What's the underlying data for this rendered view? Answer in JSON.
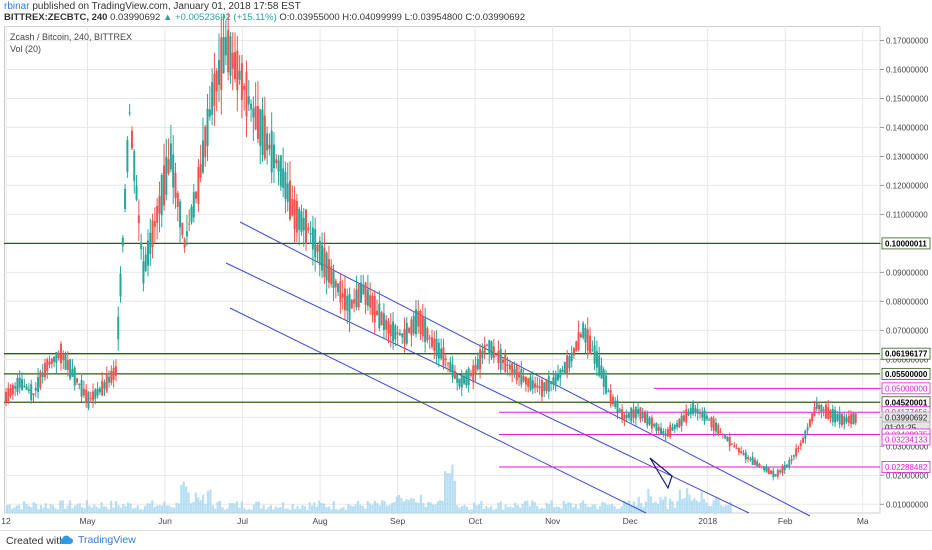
{
  "header": {
    "author": "rbinar",
    "published_text": " published on TradingView.com, January 01, 2018 17:58 EST",
    "symbol": "BITTREX:ZECBTC, 240",
    "change": "▲ +0.00523692 (+15.11%)",
    "price": "0.03990692",
    "ohlc": "O:0.03955000 H:0.04099999 L:0.03954800 C:0.03990692"
  },
  "legend": {
    "pair": "Zcash / Bitcoin, 240, BITTREX",
    "volume": "Vol (20)"
  },
  "footer": {
    "created_with": "Created with",
    "brand": "TradingView",
    "brand_icon": "tradingview-cloud-icon"
  },
  "colors": {
    "up": "#26a69a",
    "down": "#ef5350",
    "support": "#2e5d12",
    "pink": "#e31ad6",
    "channel": "#3e47c9",
    "volume": "#9fd3ef",
    "grid": "#e8e8e8"
  },
  "chart_data": {
    "type": "line",
    "title": "Zcash / Bitcoin, 240, BITTREX",
    "xlabel": "",
    "ylabel": "",
    "x_ticks": [
      "12",
      "May",
      "Jun",
      "Jul",
      "Aug",
      "Sep",
      "Oct",
      "Nov",
      "Dec",
      "2018",
      "Feb",
      "Ma"
    ],
    "y_ticks": [
      "0.17000000",
      "0.16000000",
      "0.15000000",
      "0.14000000",
      "0.13000000",
      "0.12000000",
      "0.11000000",
      "0.10000000",
      "0.09000000",
      "0.08000000",
      "0.07000000",
      "0.06000000",
      "0.05000000",
      "0.04000000",
      "0.03000000",
      "0.02000000",
      "0.01000000"
    ],
    "ylim": [
      0.007,
      0.175
    ],
    "series": [
      {
        "values": [
          0.047,
          0.052,
          0.048,
          0.058,
          0.062,
          0.054,
          0.046,
          0.05,
          0.056,
          0.145,
          0.09,
          0.11,
          0.13,
          0.1,
          0.12,
          0.15,
          0.168,
          0.158,
          0.145,
          0.135,
          0.125,
          0.11,
          0.105,
          0.095,
          0.086,
          0.078,
          0.084,
          0.076,
          0.07,
          0.068,
          0.074,
          0.066,
          0.06,
          0.052,
          0.055,
          0.065,
          0.06,
          0.056,
          0.052,
          0.05,
          0.053,
          0.059,
          0.07,
          0.06,
          0.047,
          0.04,
          0.042,
          0.038,
          0.034,
          0.038,
          0.043,
          0.04,
          0.035,
          0.03,
          0.026,
          0.023,
          0.02,
          0.024,
          0.032,
          0.044,
          0.041,
          0.039,
          0.0399
        ]
      }
    ],
    "volume": {
      "name": "Vol (20)",
      "spikes_at": [
        "Jun",
        "Oct"
      ]
    },
    "price_labels": [
      {
        "value": 0.10000011,
        "text": "0.10000011",
        "style": "green"
      },
      {
        "value": 0.06196177,
        "text": "0.06196177",
        "style": "green"
      },
      {
        "value": 0.055,
        "text": "0.05500000",
        "style": "green"
      },
      {
        "value": 0.05,
        "text": "0.05000000",
        "style": "pink"
      },
      {
        "value": 0.04520001,
        "text": "0.04520001",
        "style": "green"
      },
      {
        "value": 0.04177456,
        "text": "0.04177456",
        "style": "pink"
      },
      {
        "value": 0.03990692,
        "text": "0.03990692",
        "style": "gray"
      },
      {
        "value": 0.0365,
        "text": "01:01:25",
        "style": "gray"
      },
      {
        "value": 0.03408975,
        "text": "0.03408975",
        "style": "pink"
      },
      {
        "value": 0.03234133,
        "text": "0.03234133",
        "style": "pink"
      },
      {
        "value": 0.02288482,
        "text": "0.02288482",
        "style": "pink"
      }
    ],
    "horizontal_lines": [
      {
        "value": 0.10000011,
        "style": "green"
      },
      {
        "value": 0.06196177,
        "style": "green"
      },
      {
        "value": 0.055,
        "style": "green"
      },
      {
        "value": 0.04520001,
        "style": "green"
      },
      {
        "value": 0.05,
        "style": "pink"
      },
      {
        "value": 0.04177456,
        "style": "pink"
      },
      {
        "value": 0.03408975,
        "style": "pink"
      },
      {
        "value": 0.02288482,
        "style": "pink"
      }
    ]
  }
}
